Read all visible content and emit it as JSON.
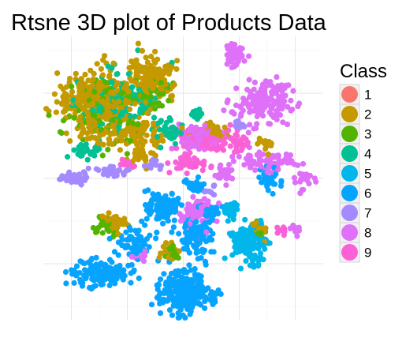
{
  "chart_data": {
    "type": "scatter",
    "title": "Rtsne 3D plot of Products Data",
    "xlabel": "",
    "ylabel": "",
    "grid": true,
    "legend": {
      "title": "Class",
      "position": "right"
    },
    "series": [
      {
        "name": "1",
        "color": "#F8766D",
        "clusters": []
      },
      {
        "name": "2",
        "color": "#C49A00",
        "clusters": [
          {
            "cx": -0.62,
            "cy": 0.56,
            "rx": 0.25,
            "ry": 0.19,
            "n": 260
          },
          {
            "cx": -0.23,
            "cy": 0.7,
            "rx": 0.17,
            "ry": 0.13,
            "n": 150
          },
          {
            "cx": -0.43,
            "cy": 0.32,
            "rx": 0.27,
            "ry": 0.09,
            "n": 120
          },
          {
            "cx": -0.3,
            "cy": 0.16,
            "rx": 0.07,
            "ry": 0.07,
            "n": 35
          },
          {
            "cx": -0.5,
            "cy": -0.3,
            "rx": 0.09,
            "ry": 0.06,
            "n": 40
          },
          {
            "cx": -0.09,
            "cy": -0.52,
            "rx": 0.06,
            "ry": 0.06,
            "n": 25
          },
          {
            "cx": 0.2,
            "cy": 0.34,
            "rx": 0.09,
            "ry": 0.05,
            "n": 30
          },
          {
            "cx": 0.58,
            "cy": 0.24,
            "rx": 0.07,
            "ry": 0.05,
            "n": 15
          },
          {
            "cx": 0.55,
            "cy": -0.36,
            "rx": 0.06,
            "ry": 0.06,
            "n": 15
          }
        ]
      },
      {
        "name": "3",
        "color": "#53B400",
        "clusters": [
          {
            "cx": -0.55,
            "cy": 0.48,
            "rx": 0.27,
            "ry": 0.22,
            "n": 110
          },
          {
            "cx": -0.22,
            "cy": 0.6,
            "rx": 0.13,
            "ry": 0.1,
            "n": 45
          },
          {
            "cx": -0.55,
            "cy": -0.33,
            "rx": 0.08,
            "ry": 0.06,
            "n": 35
          },
          {
            "cx": -0.08,
            "cy": -0.52,
            "rx": 0.05,
            "ry": 0.05,
            "n": 18
          },
          {
            "cx": 0.55,
            "cy": -0.36,
            "rx": 0.05,
            "ry": 0.05,
            "n": 12
          }
        ]
      },
      {
        "name": "4",
        "color": "#00C094",
        "clusters": [
          {
            "cx": -0.45,
            "cy": 0.55,
            "rx": 0.27,
            "ry": 0.2,
            "n": 130
          },
          {
            "cx": -0.7,
            "cy": 0.2,
            "rx": 0.1,
            "ry": 0.05,
            "n": 30
          },
          {
            "cx": -0.1,
            "cy": 0.32,
            "rx": 0.1,
            "ry": 0.07,
            "n": 40
          },
          {
            "cx": 0.1,
            "cy": 0.46,
            "rx": 0.04,
            "ry": 0.04,
            "n": 12
          }
        ]
      },
      {
        "name": "5",
        "color": "#00B6EB",
        "clusters": [
          {
            "cx": 0.46,
            "cy": -0.45,
            "rx": 0.1,
            "ry": 0.11,
            "n": 160
          },
          {
            "cx": 0.34,
            "cy": -0.22,
            "rx": 0.06,
            "ry": 0.05,
            "n": 35
          },
          {
            "cx": 0.52,
            "cy": -0.58,
            "rx": 0.04,
            "ry": 0.04,
            "n": 15
          }
        ]
      },
      {
        "name": "6",
        "color": "#06A4FF",
        "clusters": [
          {
            "cx": 0.0,
            "cy": -0.8,
            "rx": 0.16,
            "ry": 0.14,
            "n": 240
          },
          {
            "cx": -0.58,
            "cy": -0.66,
            "rx": 0.21,
            "ry": 0.08,
            "n": 150
          },
          {
            "cx": -0.15,
            "cy": -0.2,
            "rx": 0.13,
            "ry": 0.1,
            "n": 100
          },
          {
            "cx": -0.35,
            "cy": -0.45,
            "rx": 0.1,
            "ry": 0.1,
            "n": 60
          },
          {
            "cx": 0.08,
            "cy": -0.4,
            "rx": 0.12,
            "ry": 0.12,
            "n": 110
          },
          {
            "cx": 0.21,
            "cy": -0.24,
            "rx": 0.06,
            "ry": 0.04,
            "n": 25
          },
          {
            "cx": 0.08,
            "cy": -0.05,
            "rx": 0.08,
            "ry": 0.05,
            "n": 30
          },
          {
            "cx": 0.22,
            "cy": -0.83,
            "rx": 0.05,
            "ry": 0.05,
            "n": 20
          },
          {
            "cx": 0.62,
            "cy": 0.0,
            "rx": 0.07,
            "ry": 0.08,
            "n": 30
          }
        ]
      },
      {
        "name": "7",
        "color": "#A58AFF",
        "clusters": [
          {
            "cx": -0.78,
            "cy": 0.0,
            "rx": 0.09,
            "ry": 0.05,
            "n": 35
          },
          {
            "cx": -0.52,
            "cy": 0.05,
            "rx": 0.1,
            "ry": 0.04,
            "n": 30
          },
          {
            "cx": -0.2,
            "cy": 0.1,
            "rx": 0.06,
            "ry": 0.04,
            "n": 15
          },
          {
            "cx": 0.4,
            "cy": 0.38,
            "rx": 0.04,
            "ry": 0.04,
            "n": 10
          },
          {
            "cx": 0.2,
            "cy": -0.1,
            "rx": 0.04,
            "ry": 0.04,
            "n": 10
          }
        ]
      },
      {
        "name": "8",
        "color": "#DF70F8",
        "clusters": [
          {
            "cx": 0.58,
            "cy": 0.54,
            "rx": 0.17,
            "ry": 0.13,
            "n": 160
          },
          {
            "cx": 0.37,
            "cy": 0.86,
            "rx": 0.06,
            "ry": 0.07,
            "n": 45
          },
          {
            "cx": 0.12,
            "cy": 0.28,
            "rx": 0.14,
            "ry": 0.08,
            "n": 80
          },
          {
            "cx": 0.1,
            "cy": -0.24,
            "rx": 0.1,
            "ry": 0.1,
            "n": 80
          },
          {
            "cx": 0.57,
            "cy": 0.12,
            "rx": 0.2,
            "ry": 0.06,
            "n": 80
          },
          {
            "cx": 0.3,
            "cy": 0.03,
            "rx": 0.08,
            "ry": 0.05,
            "n": 30
          },
          {
            "cx": 0.85,
            "cy": 0.0,
            "rx": 0.07,
            "ry": 0.06,
            "n": 25
          },
          {
            "cx": 0.82,
            "cy": -0.36,
            "rx": 0.04,
            "ry": 0.04,
            "n": 12
          },
          {
            "cx": -0.32,
            "cy": -0.55,
            "rx": 0.05,
            "ry": 0.05,
            "n": 15
          }
        ]
      },
      {
        "name": "9",
        "color": "#FB61D7",
        "clusters": [
          {
            "cx": 0.2,
            "cy": 0.28,
            "rx": 0.16,
            "ry": 0.08,
            "n": 90
          },
          {
            "cx": 0.05,
            "cy": 0.1,
            "rx": 0.12,
            "ry": 0.06,
            "n": 50
          },
          {
            "cx": 0.4,
            "cy": 0.24,
            "rx": 0.06,
            "ry": 0.05,
            "n": 25
          },
          {
            "cx": 0.7,
            "cy": -0.36,
            "rx": 0.04,
            "ry": 0.04,
            "n": 10
          },
          {
            "cx": -0.4,
            "cy": 0.1,
            "rx": 0.05,
            "ry": 0.03,
            "n": 10
          }
        ]
      }
    ]
  }
}
